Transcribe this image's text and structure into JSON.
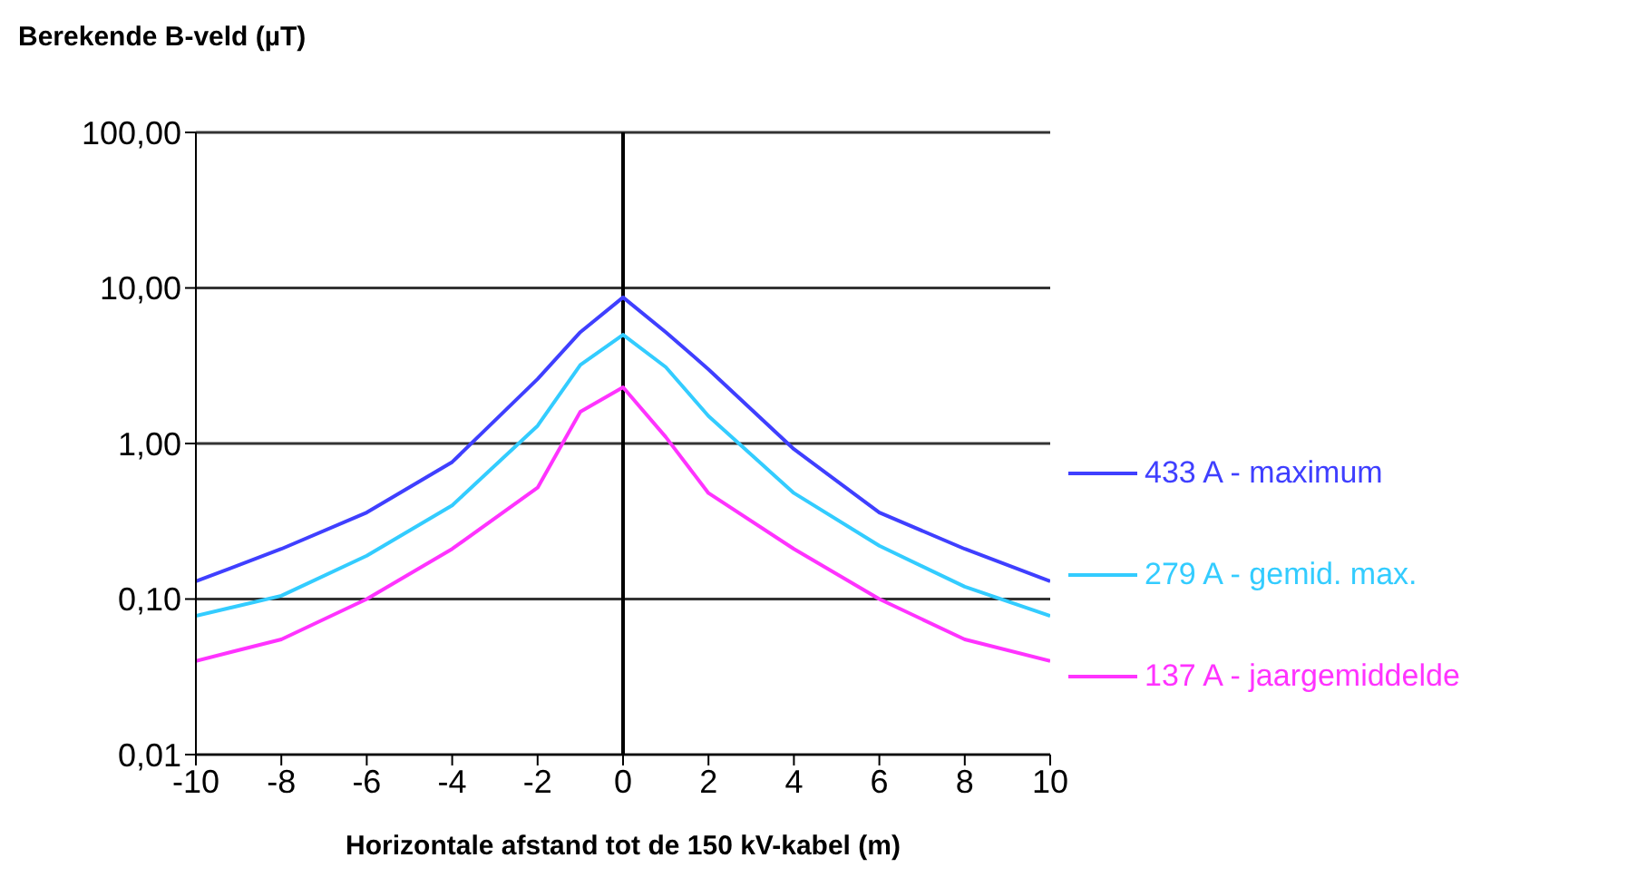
{
  "chart_data": {
    "type": "line",
    "ylabel": "Berekende B-veld (µT)",
    "xlabel": "Horizontale afstand tot de 150 kV-kabel (m)",
    "x": [
      -10,
      -8,
      -6,
      -4,
      -2,
      -1,
      0,
      1,
      2,
      4,
      6,
      8,
      10
    ],
    "series": [
      {
        "name": "433 A - maximum",
        "color": "#3f3fff",
        "values": [
          0.13,
          0.21,
          0.36,
          0.76,
          2.6,
          5.2,
          8.7,
          5.2,
          3.0,
          0.92,
          0.36,
          0.21,
          0.13
        ]
      },
      {
        "name": "279 A - gemid. max.",
        "color": "#33ccff",
        "values": [
          0.078,
          0.105,
          0.19,
          0.4,
          1.3,
          3.2,
          5.0,
          3.1,
          1.5,
          0.48,
          0.22,
          0.12,
          0.078
        ]
      },
      {
        "name": "137 A - jaargemiddelde",
        "color": "#ff33ff",
        "values": [
          0.04,
          0.055,
          0.1,
          0.21,
          0.52,
          1.6,
          2.3,
          1.1,
          0.48,
          0.21,
          0.1,
          0.055,
          0.04
        ]
      }
    ],
    "log": "y",
    "xlim": [
      -10,
      10
    ],
    "xticks": [
      -10,
      -8,
      -6,
      -4,
      -2,
      0,
      2,
      4,
      6,
      8,
      10
    ],
    "ylim": [
      0.01,
      100
    ],
    "yticks": [
      {
        "value": 0.01,
        "label": "0,01"
      },
      {
        "value": 0.1,
        "label": "0,10"
      },
      {
        "value": 1,
        "label": "1,00"
      },
      {
        "value": 10,
        "label": "10,00"
      },
      {
        "value": 100,
        "label": "100,00"
      }
    ],
    "ref_lines": [
      {
        "axis": "x",
        "value": 0
      }
    ],
    "grid": "y",
    "legend": "right",
    "marker": "none",
    "line_style": "solid"
  }
}
